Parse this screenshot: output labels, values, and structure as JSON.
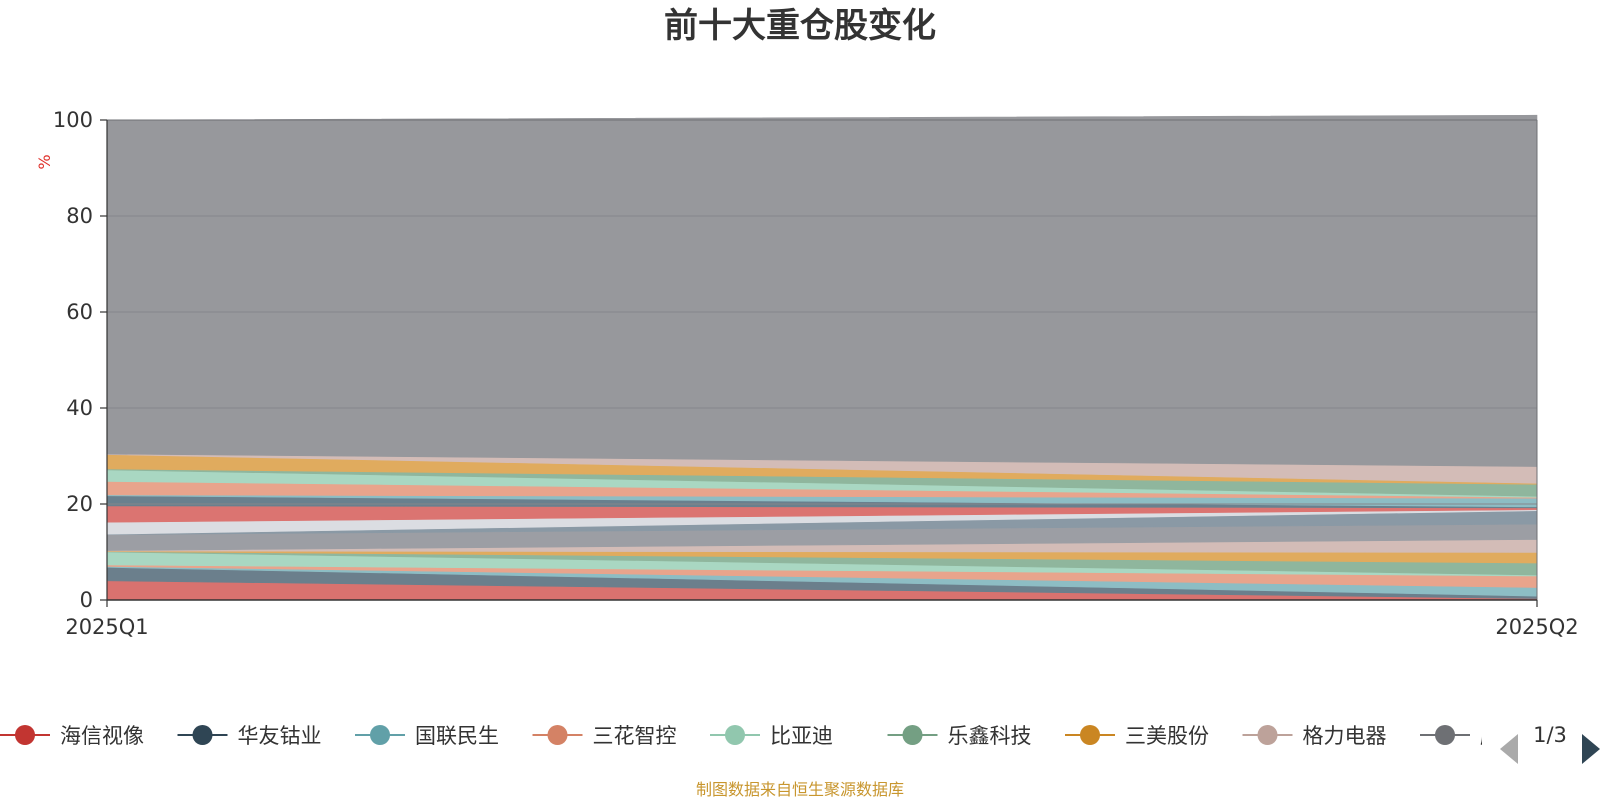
{
  "chart_data": {
    "type": "area",
    "stacked": true,
    "title": "前十大重仓股变化",
    "ylabel": "%",
    "ylim": [
      0,
      100
    ],
    "yticks": [
      0,
      20,
      40,
      60,
      80,
      100
    ],
    "categories": [
      "2025Q1",
      "2025Q2"
    ],
    "grid": true,
    "legend_position": "bottom",
    "series": [
      {
        "name": "海信视像",
        "color": "#d9726f",
        "values": [
          4.0,
          0.3
        ]
      },
      {
        "name": "华友钴业",
        "color": "#6b7f8c",
        "values": [
          2.8,
          0.5
        ]
      },
      {
        "name": "国联民生",
        "color": "#8dbdc4",
        "values": [
          0.2,
          1.8
        ]
      },
      {
        "name": "三花智控",
        "color": "#e8a48c",
        "values": [
          0.3,
          2.4
        ]
      },
      {
        "name": "比亚迪",
        "color": "#a9d7c2",
        "values": [
          2.7,
          0.2
        ]
      },
      {
        "name": "乐鑫科技",
        "color": "#8fb69d",
        "values": [
          0.1,
          2.5
        ]
      },
      {
        "name": "三美股份",
        "color": "#e0ab5e",
        "values": [
          0.1,
          2.2
        ]
      },
      {
        "name": "格力电器",
        "color": "#d3bcb7",
        "values": [
          0.1,
          2.7
        ]
      },
      {
        "name": "胜宏科技",
        "color": "#9c9ea4",
        "values": [
          3.3,
          3.2
        ]
      },
      {
        "name": "",
        "color": "#8a99a5",
        "values": [
          0.1,
          2.8
        ]
      },
      {
        "name": "",
        "color": "#dbdde2",
        "values": [
          2.5,
          0.2
        ]
      },
      {
        "name": "",
        "color": "#db7471",
        "values": [
          3.4,
          0.4
        ]
      },
      {
        "name": "",
        "color": "#69808e",
        "values": [
          2.1,
          0.2
        ]
      },
      {
        "name": "",
        "color": "#8dbdc4",
        "values": [
          0.2,
          1.8
        ]
      },
      {
        "name": "",
        "color": "#e8a48c",
        "values": [
          2.8,
          0.2
        ]
      },
      {
        "name": "",
        "color": "#a9d7c2",
        "values": [
          2.4,
          0.2
        ]
      },
      {
        "name": "",
        "color": "#8fb69d",
        "values": [
          0.2,
          2.5
        ]
      },
      {
        "name": "",
        "color": "#e0ab5e",
        "values": [
          3.0,
          0.2
        ]
      },
      {
        "name": "",
        "color": "#d3bcb7",
        "values": [
          0.1,
          3.5
        ]
      },
      {
        "name": "",
        "color": "#97989c",
        "values": [
          69.6,
          73.2
        ]
      }
    ]
  },
  "legend": {
    "visible_items": [
      "海信视像",
      "华友钴业",
      "国联民生",
      "三花智控",
      "比亚迪",
      "乐鑫科技",
      "三美股份",
      "格力电器",
      "胜宏科技"
    ],
    "marker_colors": [
      "#c23531",
      "#2f4554",
      "#61a0a8",
      "#d48265",
      "#91c7ae",
      "#749f83",
      "#ca8622",
      "#bda29a",
      "#6e7074"
    ],
    "page_text": "1/3"
  },
  "source_note": "制图数据来自恒生聚源数据库"
}
